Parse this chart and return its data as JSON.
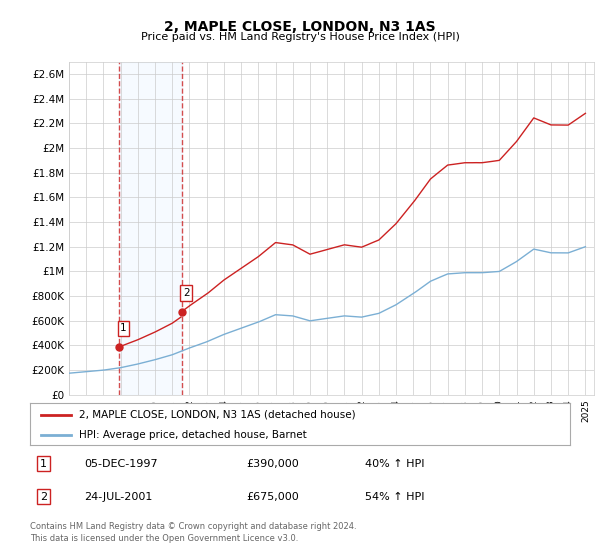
{
  "title": "2, MAPLE CLOSE, LONDON, N3 1AS",
  "subtitle": "Price paid vs. HM Land Registry's House Price Index (HPI)",
  "sale1_date": "05-DEC-1997",
  "sale1_price": 390000,
  "sale1_label": "40% ↑ HPI",
  "sale1_x": 1997.917,
  "sale2_date": "24-JUL-2001",
  "sale2_price": 675000,
  "sale2_label": "54% ↑ HPI",
  "sale2_x": 2001.556,
  "legend_line1": "2, MAPLE CLOSE, LONDON, N3 1AS (detached house)",
  "legend_line2": "HPI: Average price, detached house, Barnet",
  "footer": "Contains HM Land Registry data © Crown copyright and database right 2024.\nThis data is licensed under the Open Government Licence v3.0.",
  "hpi_color": "#7bafd4",
  "price_color": "#cc2222",
  "shade_color": "#ddeeff",
  "background_color": "#ffffff",
  "grid_color": "#cccccc",
  "ylim_min": 0,
  "ylim_max": 2700000,
  "xlim_min": 1995.0,
  "xlim_max": 2025.5,
  "yticks": [
    0,
    200000,
    400000,
    600000,
    800000,
    1000000,
    1200000,
    1400000,
    1600000,
    1800000,
    2000000,
    2200000,
    2400000,
    2600000
  ],
  "ylabels": [
    "£0",
    "£200K",
    "£400K",
    "£600K",
    "£800K",
    "£1M",
    "£1.2M",
    "£1.4M",
    "£1.6M",
    "£1.8M",
    "£2M",
    "£2.2M",
    "£2.4M",
    "£2.6M"
  ]
}
